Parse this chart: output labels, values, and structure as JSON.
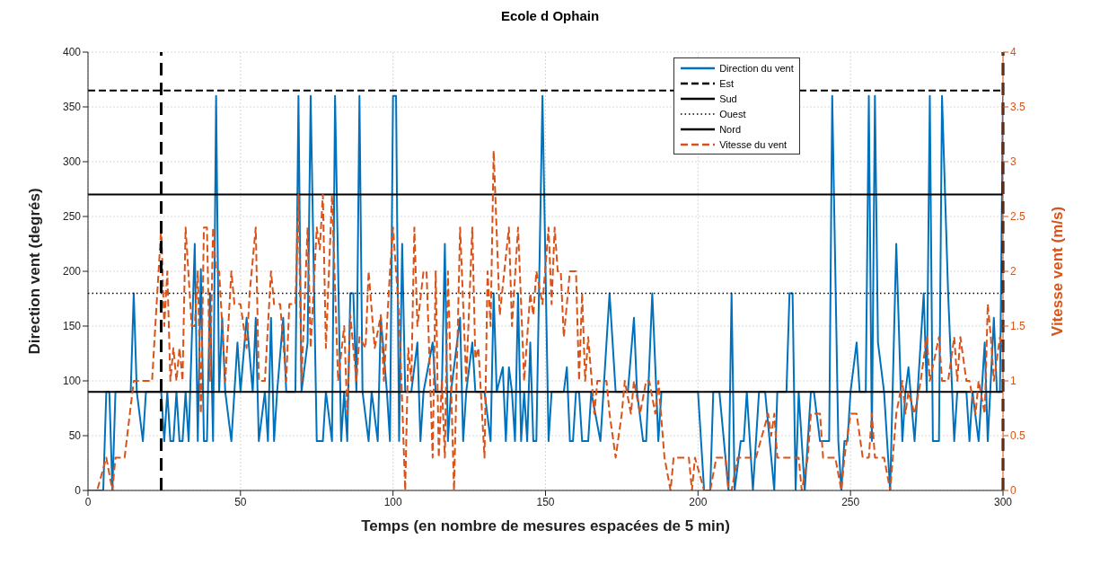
{
  "chart_data": {
    "type": "line",
    "title": "Ecole d Ophain",
    "xlabel": "Temps (en nombre de mesures espacées de 5 min)",
    "ylabel": "Direction vent (degrés)",
    "y2label": "Vitesse vent (m/s)",
    "xlim": [
      0,
      300
    ],
    "xticks": [
      0,
      50,
      100,
      150,
      200,
      250,
      300
    ],
    "ylim": [
      0,
      400
    ],
    "yticks": [
      0,
      50,
      100,
      150,
      200,
      250,
      300,
      350,
      400
    ],
    "y2lim": [
      0,
      4
    ],
    "y2ticks": [
      0,
      0.5,
      1,
      1.5,
      2,
      2.5,
      3,
      3.5,
      4
    ],
    "grid": true,
    "legend": "top right",
    "marker": "none",
    "series": [
      {
        "name": "Direction du vent",
        "color": "#0072bd",
        "line_style": "solid",
        "x": [
          0,
          5,
          6,
          7,
          8,
          9,
          14,
          15,
          16,
          18,
          19,
          24,
          25,
          26,
          27,
          28,
          29,
          30,
          31,
          32,
          33,
          35,
          36,
          37,
          38,
          39,
          40,
          41,
          42,
          43,
          44,
          45,
          47,
          49,
          50,
          52,
          54,
          55,
          56,
          58,
          59,
          60,
          61,
          62,
          64,
          65,
          68,
          69,
          70,
          72,
          73,
          75,
          77,
          78,
          80,
          81,
          83,
          84,
          85,
          86,
          87,
          88,
          89,
          90,
          92,
          93,
          95,
          96,
          98,
          99,
          100,
          101,
          102,
          103,
          104,
          106,
          108,
          109,
          110,
          113,
          114,
          116,
          117,
          118,
          119,
          122,
          123,
          124,
          126,
          127,
          130,
          132,
          133,
          134,
          136,
          137,
          138,
          139,
          140,
          141,
          142,
          143,
          144,
          145,
          146,
          147,
          149,
          151,
          152,
          156,
          157,
          158,
          159,
          160,
          161,
          162,
          164,
          165,
          168,
          171,
          173,
          177,
          179,
          180,
          182,
          183,
          185,
          187,
          188,
          200,
          202,
          204,
          205,
          207,
          210,
          211,
          212,
          214,
          215,
          216,
          218,
          220,
          222,
          225,
          226,
          229,
          230,
          231,
          232,
          233,
          235,
          237,
          238,
          240,
          243,
          244,
          246,
          247,
          248,
          249,
          250,
          252,
          253,
          255,
          256,
          257,
          258,
          259,
          261,
          263,
          265,
          267,
          268,
          269,
          271,
          272,
          274,
          275,
          276,
          277,
          279,
          280,
          282,
          284,
          285,
          288,
          289,
          290,
          292,
          294,
          295,
          297,
          298,
          299,
          300
        ],
        "values": [
          0,
          0,
          90,
          90,
          0,
          90,
          90,
          180,
          90,
          45,
          90,
          90,
          45,
          90,
          45,
          45,
          90,
          45,
          45,
          90,
          45,
          225,
          45,
          202,
          45,
          45,
          180,
          45,
          360,
          90,
          157.5,
          90,
          45,
          135,
          90,
          157.5,
          90,
          157.5,
          45,
          90,
          45,
          157.5,
          45,
          90,
          157.5,
          90,
          90,
          360,
          90,
          135,
          360,
          45,
          45,
          90,
          45,
          360,
          45,
          90,
          45,
          180,
          180,
          90,
          360,
          90,
          45,
          90,
          45,
          157.5,
          90,
          45,
          360,
          360,
          45,
          225,
          90,
          90,
          135,
          45,
          90,
          135,
          90,
          90,
          225,
          45,
          90,
          157.5,
          45,
          90,
          135,
          90,
          90,
          45,
          180,
          90,
          112.5,
          45,
          112.5,
          90,
          45,
          180,
          45,
          90,
          45,
          135,
          45,
          45,
          360,
          45,
          90,
          90,
          112.5,
          45,
          45,
          90,
          90,
          45,
          45,
          90,
          45,
          180,
          90,
          90,
          157.5,
          90,
          45,
          45,
          180,
          45,
          90,
          90,
          0,
          0,
          90,
          90,
          0,
          180,
          0,
          45,
          45,
          90,
          0,
          90,
          90,
          0,
          90,
          90,
          180,
          180,
          0,
          90,
          0,
          90,
          90,
          45,
          45,
          360,
          45,
          0,
          45,
          45,
          90,
          135,
          90,
          90,
          360,
          45,
          360,
          135,
          90,
          0,
          225,
          45,
          90,
          112.5,
          45,
          90,
          180,
          90,
          360,
          45,
          45,
          360,
          180,
          45,
          90,
          90,
          45,
          90,
          45,
          135,
          45,
          157.5,
          90,
          90,
          360
        ]
      },
      {
        "name": "Est",
        "color": "#000000",
        "line_style": "dashed",
        "x": [
          0,
          300
        ],
        "values": [
          365,
          365
        ]
      },
      {
        "name": "Sud",
        "color": "#000000",
        "line_style": "solid",
        "x": [
          0,
          300
        ],
        "values": [
          270,
          270
        ]
      },
      {
        "name": "Ouest",
        "color": "#000000",
        "line_style": "dotted",
        "x": [
          0,
          300
        ],
        "values": [
          180,
          180
        ]
      },
      {
        "name": "Nord",
        "color": "#000000",
        "line_style": "solid",
        "x": [
          0,
          300
        ],
        "values": [
          90,
          90
        ]
      },
      {
        "name": "Vitesse du vent",
        "color": "#d95319",
        "line_style": "dashed",
        "axis": "y2",
        "x": [
          0,
          3,
          6,
          8,
          9,
          12,
          15,
          21,
          24,
          25,
          26,
          27,
          28,
          29,
          30,
          31,
          32,
          34,
          35,
          36,
          37,
          38,
          39,
          40,
          41,
          42,
          43,
          45,
          47,
          48,
          50,
          52,
          53,
          55,
          56,
          58,
          60,
          61,
          63,
          65,
          66,
          68,
          69,
          70,
          72,
          73,
          75,
          76,
          77,
          78,
          80,
          82,
          84,
          85,
          86,
          88,
          89,
          91,
          92,
          94,
          96,
          97,
          99,
          100,
          102,
          104,
          105,
          106,
          107,
          108,
          110,
          111,
          113,
          114,
          115,
          116,
          117,
          118,
          120,
          122,
          124,
          126,
          127,
          128,
          130,
          131,
          132,
          133,
          135,
          138,
          139,
          141,
          143,
          145,
          146,
          147,
          149,
          151,
          152,
          153,
          154,
          155,
          156,
          158,
          160,
          161,
          162,
          163,
          164,
          166,
          167,
          170,
          171,
          173,
          175,
          176,
          178,
          179,
          181,
          183,
          184,
          186,
          187,
          189,
          191,
          192,
          197,
          198,
          199,
          202,
          204,
          206,
          209,
          210,
          211,
          213,
          219,
          223,
          224,
          225,
          226,
          233,
          234,
          236,
          237,
          240,
          241,
          245,
          247,
          248,
          250,
          252,
          254,
          256,
          257,
          258,
          261,
          263,
          265,
          267,
          268,
          269,
          271,
          273,
          275,
          276,
          279,
          280,
          282,
          284,
          285,
          286,
          288,
          289,
          291,
          292,
          294,
          295,
          296,
          297,
          299,
          300
        ],
        "values": [
          0,
          0,
          0.3,
          0,
          0.3,
          0.3,
          1,
          1,
          2.4,
          1.5,
          2,
          1,
          1.3,
          1,
          1.3,
          1,
          2.4,
          1.5,
          1.5,
          2,
          0.7,
          2.4,
          2.4,
          1,
          2.4,
          2,
          2,
          1,
          2,
          1.7,
          1.7,
          1.3,
          1.8,
          2.4,
          1,
          1,
          2,
          1.7,
          1.7,
          1,
          1.7,
          1.7,
          2.7,
          1,
          2.4,
          1.3,
          2.4,
          2.2,
          2.7,
          1.3,
          2.7,
          1,
          1.5,
          0.7,
          1.6,
          1,
          1.4,
          1.3,
          2,
          1.3,
          1.6,
          1,
          2,
          2.4,
          1.6,
          0,
          1.3,
          1,
          2.4,
          1.5,
          2,
          2,
          0.3,
          2,
          0.3,
          1,
          0.3,
          2,
          0,
          2.4,
          1,
          2.4,
          1.2,
          1.3,
          0.3,
          2,
          1.5,
          3.1,
          1.6,
          2.4,
          1.5,
          2.4,
          1,
          1.8,
          1.6,
          2,
          1.7,
          2.4,
          1.7,
          2.4,
          2,
          2,
          1.4,
          2,
          2,
          1,
          1.8,
          1,
          1.4,
          0.7,
          1,
          1,
          0.7,
          0.3,
          0.7,
          1,
          0.7,
          1,
          0.7,
          1,
          1,
          0.7,
          1,
          0.3,
          0,
          0.3,
          0.3,
          0,
          0.3,
          0,
          0,
          0.3,
          0.3,
          0,
          0,
          0.3,
          0.3,
          0.7,
          0.5,
          0.7,
          0.3,
          0.3,
          0,
          0.3,
          0.7,
          0.7,
          0.3,
          0.3,
          0,
          0.3,
          0.7,
          0.7,
          0.3,
          0.3,
          0.7,
          0.3,
          0.3,
          0,
          0.7,
          1,
          0.7,
          0.9,
          0.7,
          1,
          1.4,
          1,
          1.4,
          1,
          1,
          1.4,
          1,
          1.4,
          1,
          1,
          0.7,
          1,
          0.7,
          1.7,
          1.4,
          1,
          1.4,
          1.3
        ]
      }
    ],
    "ref_lines": [
      {
        "axis": "x",
        "value": 24,
        "color": "#000000",
        "line_style": "dashed"
      },
      {
        "axis": "x",
        "value": 300,
        "color": "#000000",
        "line_style": "dashed"
      }
    ]
  }
}
